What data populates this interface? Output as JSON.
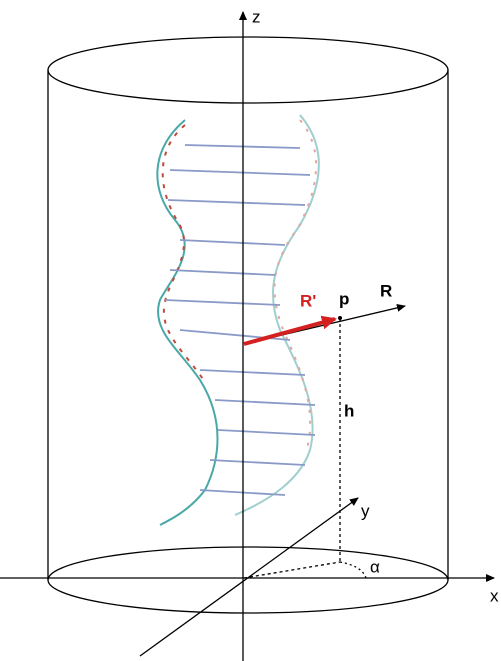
{
  "labels": {
    "z": "z",
    "x": "x",
    "y": "y",
    "R": "R",
    "R_prime": "R'",
    "p": "p",
    "h": "h",
    "alpha": "α"
  }
}
